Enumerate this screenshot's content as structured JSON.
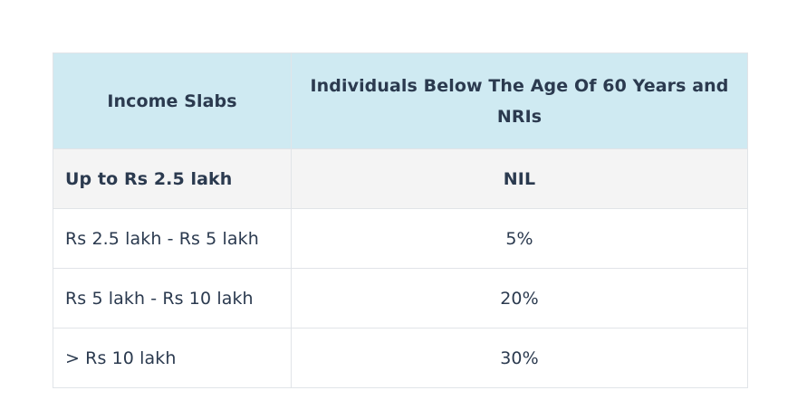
{
  "table": {
    "headers": {
      "slab": "Income Slabs",
      "rate": "Individuals Below The Age Of 60 Years and NRIs"
    },
    "rows": [
      {
        "slab": "Up to Rs 2.5 lakh",
        "rate": "NIL"
      },
      {
        "slab": "Rs 2.5 lakh - Rs 5 lakh",
        "rate": "5%"
      },
      {
        "slab": "Rs 5 lakh - Rs 10 lakh",
        "rate": "20%"
      },
      {
        "slab": "> Rs 10 lakh",
        "rate": "30%"
      }
    ]
  },
  "colors": {
    "header_bg": "#cfeaf2",
    "first_row_bg": "#f4f4f4",
    "text": "#2b3a4f",
    "border": "#e1e4e8"
  }
}
